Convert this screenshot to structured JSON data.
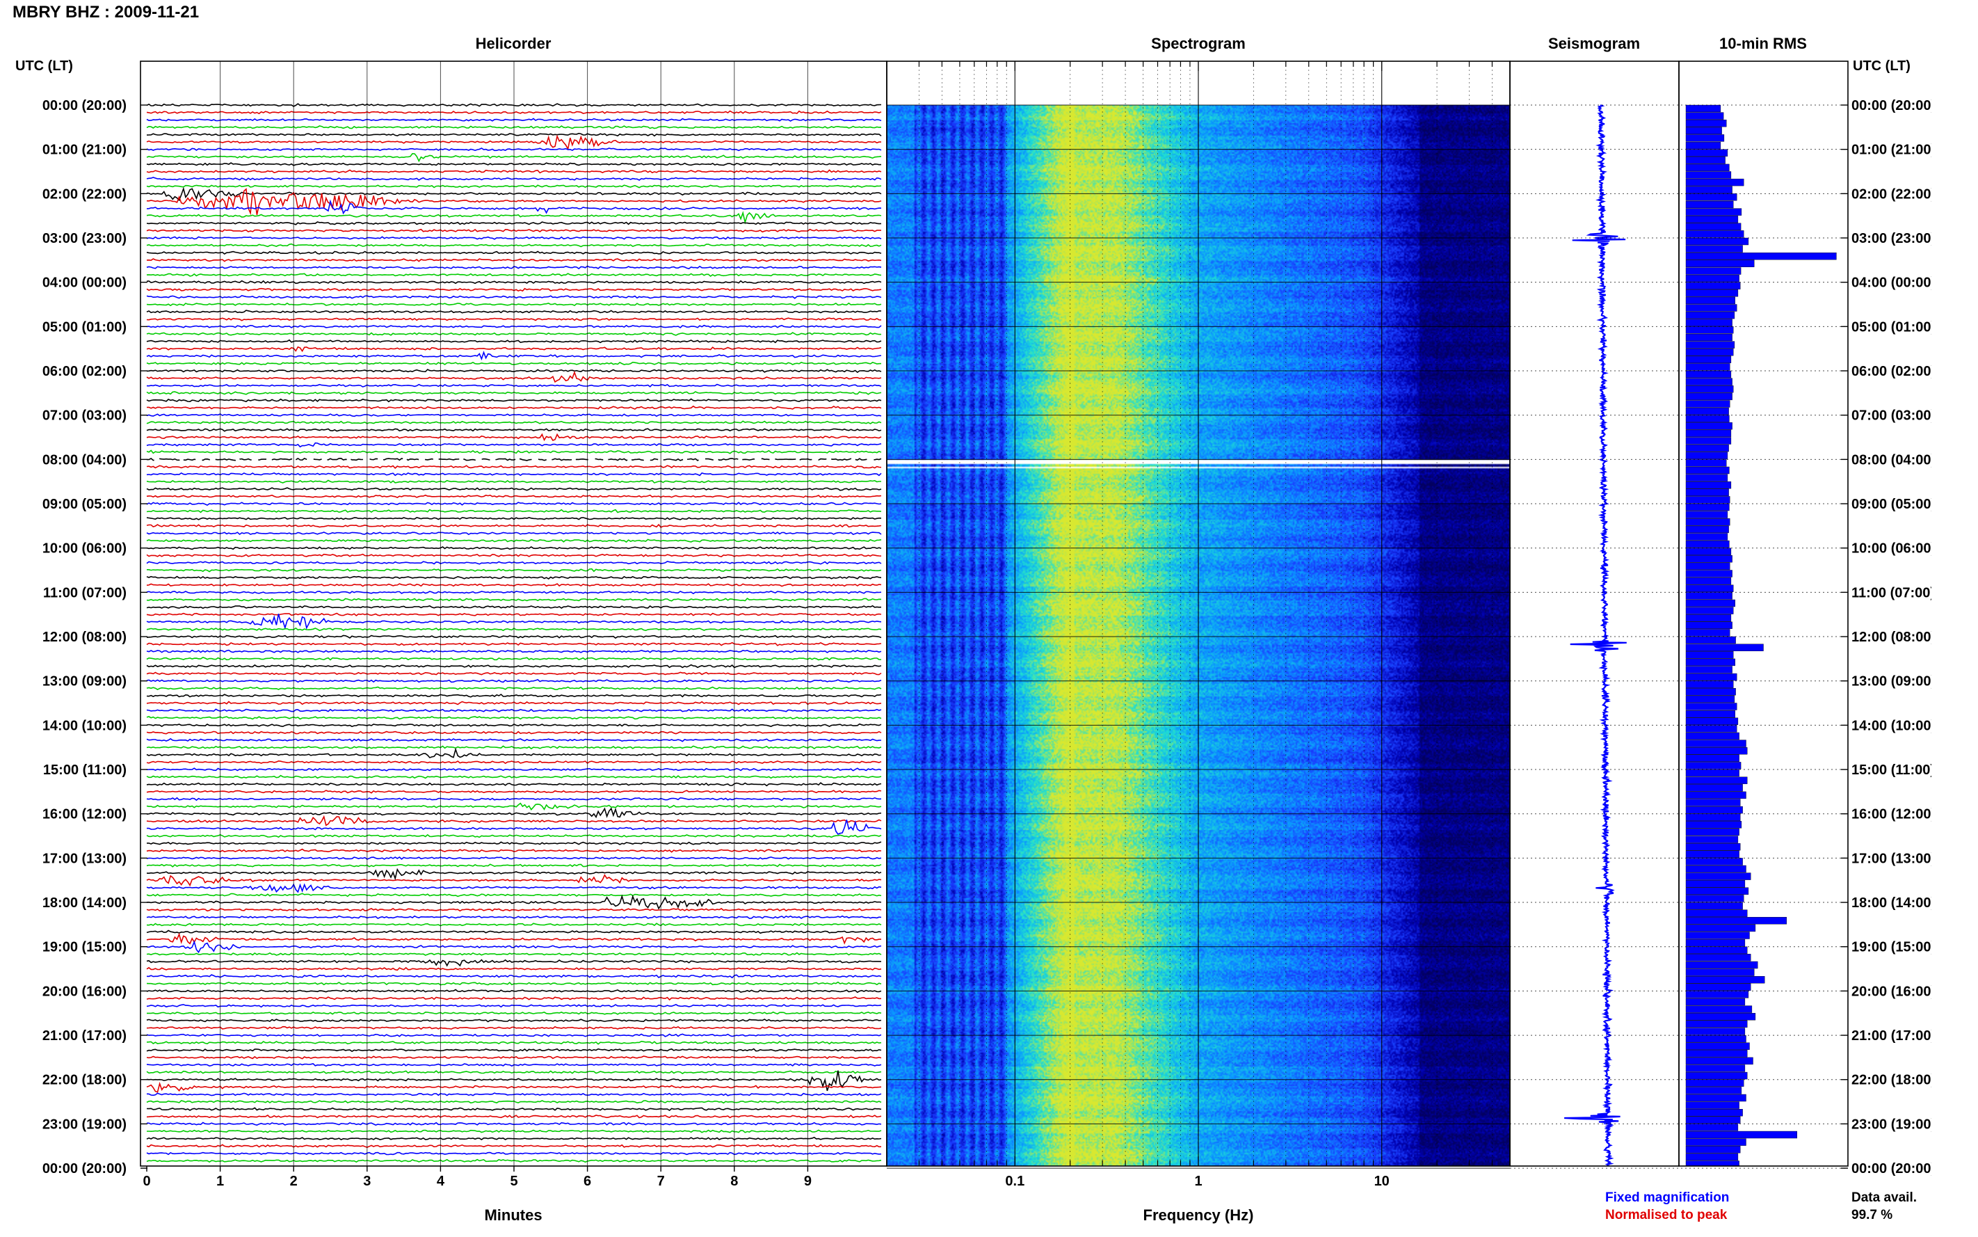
{
  "station_title": "MBRY BHZ : 2009-11-21",
  "time_axis_title": "UTC (LT)",
  "colors": {
    "trace_cycle": [
      "#000000",
      "#e00000",
      "#0000ff",
      "#00cc00"
    ],
    "rms_bar": "#0000ff",
    "seismogram": "#0000ff",
    "fixed_magnification_note": "#0000ff",
    "normalised_note": "#e00000",
    "spectrogram_colormap": [
      "#03005f",
      "#0000b0",
      "#1a3cff",
      "#0a9aff",
      "#20e0d0",
      "#d8e830"
    ]
  },
  "notes": {
    "fixed_magnification": "Fixed magnification",
    "normalised_to_peak": "Normalised to peak",
    "data_avail_label": "Data avail.",
    "data_avail_value": "99.7 %"
  },
  "chart_data": [
    {
      "id": "helicorder",
      "type": "line",
      "title": "Helicorder",
      "xlabel": "Minutes",
      "ylabel": "",
      "xlim": [
        0,
        10
      ],
      "xticks": [
        "0",
        "1",
        "2",
        "3",
        "4",
        "5",
        "6",
        "7",
        "8",
        "9"
      ],
      "y_tick_labels": [
        "00:00 (20:00)",
        "01:00 (21:00)",
        "02:00 (22:00)",
        "03:00 (23:00)",
        "04:00 (00:00)",
        "05:00 (01:00)",
        "06:00 (02:00)",
        "07:00 (03:00)",
        "08:00 (04:00)",
        "09:00 (05:00)",
        "10:00 (06:00)",
        "11:00 (07:00)",
        "12:00 (08:00)",
        "13:00 (09:00)",
        "14:00 (10:00)",
        "15:00 (11:00)",
        "16:00 (12:00)",
        "17:00 (13:00)",
        "18:00 (14:00)",
        "19:00 (15:00)",
        "20:00 (16:00)",
        "21:00 (17:00)",
        "22:00 (18:00)",
        "23:00 (19:00)",
        "00:00 (20:00)"
      ],
      "traces_per_hour": 6,
      "trace_minutes": 10,
      "grid": true,
      "events": [
        {
          "row": 5,
          "start_min": 5.3,
          "dur_min": 1.2,
          "amp": 2.0
        },
        {
          "row": 7,
          "start_min": 3.6,
          "dur_min": 0.3,
          "amp": 1.4
        },
        {
          "row": 12,
          "start_min": 0.2,
          "dur_min": 1.3,
          "amp": 1.8
        },
        {
          "row": 13,
          "start_min": 0.3,
          "dur_min": 3.6,
          "amp": 3.2
        },
        {
          "row": 14,
          "start_min": 5.3,
          "dur_min": 0.2,
          "amp": 2.0
        },
        {
          "row": 14,
          "start_min": 2.4,
          "dur_min": 0.6,
          "amp": 1.8
        },
        {
          "row": 15,
          "start_min": 8.0,
          "dur_min": 0.6,
          "amp": 1.4
        },
        {
          "row": 33,
          "start_min": 2.0,
          "dur_min": 0.2,
          "amp": 1.6
        },
        {
          "row": 34,
          "start_min": 4.5,
          "dur_min": 0.3,
          "amp": 1.2
        },
        {
          "row": 37,
          "start_min": 5.5,
          "dur_min": 0.6,
          "amp": 1.8
        },
        {
          "row": 45,
          "start_min": 5.3,
          "dur_min": 0.6,
          "amp": 1.5
        },
        {
          "row": 46,
          "start_min": 2.0,
          "dur_min": 0.4,
          "amp": 1.2
        },
        {
          "row": 70,
          "start_min": 1.4,
          "dur_min": 1.1,
          "amp": 3.2
        },
        {
          "row": 88,
          "start_min": 3.8,
          "dur_min": 0.8,
          "amp": 1.6
        },
        {
          "row": 95,
          "start_min": 5.0,
          "dur_min": 0.9,
          "amp": 1.6
        },
        {
          "row": 96,
          "start_min": 6.0,
          "dur_min": 0.8,
          "amp": 1.4
        },
        {
          "row": 97,
          "start_min": 2.0,
          "dur_min": 1.2,
          "amp": 1.6
        },
        {
          "row": 98,
          "start_min": 9.3,
          "dur_min": 0.7,
          "amp": 2.0
        },
        {
          "row": 104,
          "start_min": 3.0,
          "dur_min": 0.9,
          "amp": 1.4
        },
        {
          "row": 105,
          "start_min": 0.1,
          "dur_min": 1.1,
          "amp": 2.0
        },
        {
          "row": 105,
          "start_min": 5.8,
          "dur_min": 0.8,
          "amp": 1.6
        },
        {
          "row": 106,
          "start_min": 1.4,
          "dur_min": 1.3,
          "amp": 1.4
        },
        {
          "row": 108,
          "start_min": 6.2,
          "dur_min": 1.6,
          "amp": 2.4
        },
        {
          "row": 113,
          "start_min": 0.3,
          "dur_min": 0.7,
          "amp": 1.4
        },
        {
          "row": 113,
          "start_min": 9.4,
          "dur_min": 0.5,
          "amp": 1.4
        },
        {
          "row": 114,
          "start_min": 0.5,
          "dur_min": 0.8,
          "amp": 1.6
        },
        {
          "row": 116,
          "start_min": 3.5,
          "dur_min": 1.3,
          "amp": 1.4
        },
        {
          "row": 132,
          "start_min": 9.0,
          "dur_min": 0.8,
          "amp": 3.8
        },
        {
          "row": 133,
          "start_min": 0.0,
          "dur_min": 0.7,
          "amp": 2.4
        }
      ],
      "data_gap_row": 48
    },
    {
      "id": "spectrogram",
      "type": "heatmap",
      "title": "Spectrogram",
      "xlabel": "Frequency (Hz)",
      "x_scale": "log",
      "xticks": [
        "0.1",
        "1",
        "10"
      ],
      "xlim": [
        0.02,
        50
      ],
      "rows_per_hour": 6,
      "data_gap_rows": [
        48
      ],
      "grid": true
    },
    {
      "id": "seismogram",
      "type": "line",
      "title": "Seismogram",
      "hours": 24,
      "events": [
        {
          "hour": 3.0,
          "amp": 3.0
        },
        {
          "hour": 12.2,
          "amp": 2.6
        },
        {
          "hour": 17.7,
          "amp": 1.4
        },
        {
          "hour": 22.9,
          "amp": 3.0
        }
      ]
    },
    {
      "id": "rms",
      "type": "bar",
      "title": "10-min RMS",
      "orientation": "horizontal",
      "bins_per_hour": 6,
      "values": [
        0.6,
        0.65,
        0.7,
        0.62,
        0.66,
        0.6,
        0.72,
        0.68,
        0.75,
        0.78,
        1.0,
        0.8,
        0.88,
        0.82,
        0.96,
        0.9,
        0.95,
        1.0,
        1.08,
        0.98,
        2.6,
        1.18,
        0.95,
        0.92,
        0.94,
        0.9,
        0.85,
        0.88,
        0.84,
        0.8,
        0.82,
        0.8,
        0.84,
        0.82,
        0.78,
        0.76,
        0.78,
        0.8,
        0.82,
        0.8,
        0.76,
        0.74,
        0.75,
        0.8,
        0.78,
        0.78,
        0.74,
        0.72,
        0.7,
        0.75,
        0.72,
        0.78,
        0.74,
        0.76,
        0.75,
        0.72,
        0.76,
        0.74,
        0.72,
        0.75,
        0.78,
        0.8,
        0.76,
        0.8,
        0.78,
        0.82,
        0.8,
        0.85,
        0.82,
        0.78,
        0.8,
        0.76,
        0.86,
        1.34,
        0.82,
        0.85,
        0.8,
        0.88,
        0.82,
        0.86,
        0.84,
        0.88,
        0.85,
        0.9,
        0.88,
        0.92,
        1.04,
        1.06,
        0.92,
        0.95,
        0.92,
        1.06,
        0.98,
        1.04,
        0.94,
        0.98,
        0.94,
        0.96,
        0.92,
        0.9,
        0.94,
        0.92,
        0.98,
        1.04,
        1.12,
        1.02,
        1.08,
        1.0,
        0.98,
        1.06,
        1.74,
        1.2,
        1.1,
        1.02,
        1.06,
        1.12,
        1.24,
        1.18,
        1.36,
        1.12,
        1.08,
        1.02,
        1.14,
        1.2,
        1.06,
        1.02,
        1.04,
        1.1,
        1.06,
        1.16,
        1.02,
        1.06,
        1.0,
        0.96,
        1.04,
        0.92,
        0.98,
        0.94,
        0.9,
        1.92,
        1.04,
        0.94,
        0.9,
        0.92
      ],
      "xlim": [
        0,
        2.8
      ]
    }
  ]
}
